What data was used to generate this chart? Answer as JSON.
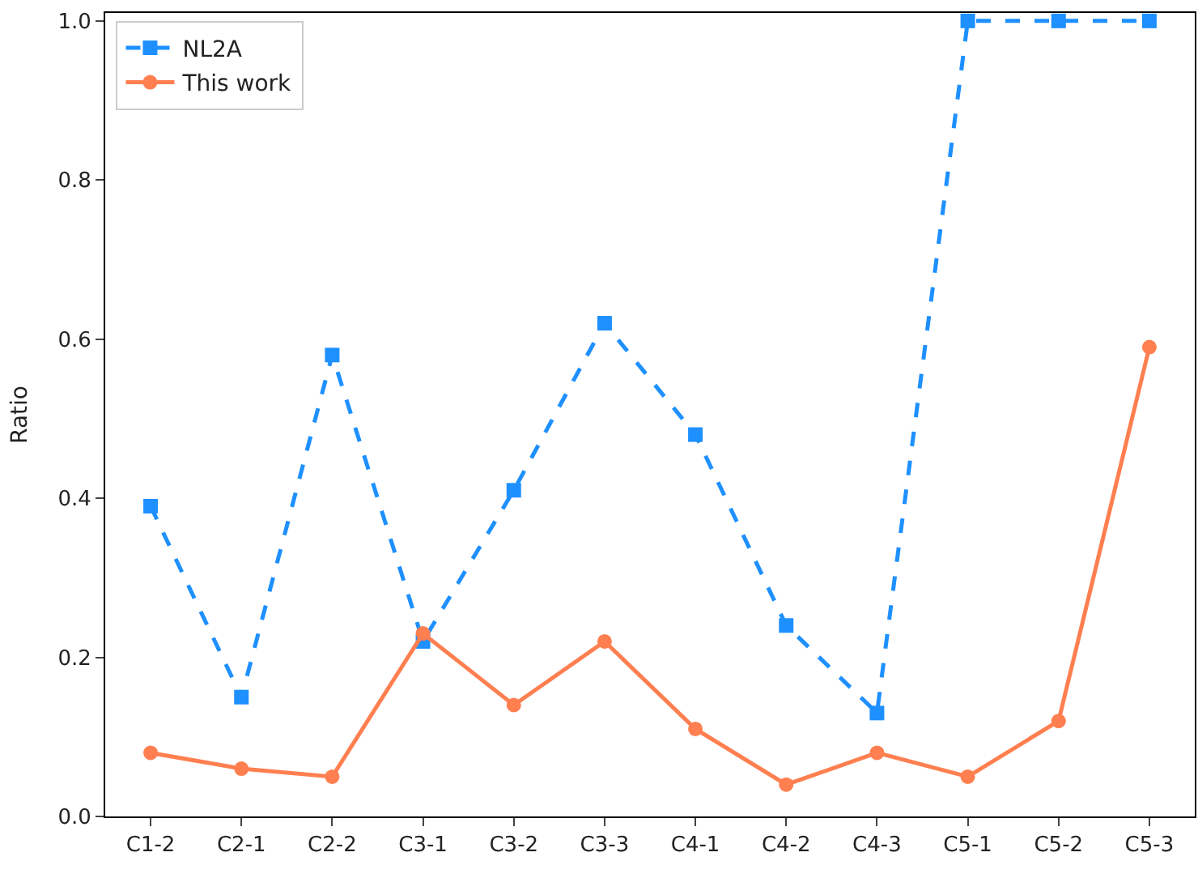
{
  "chart_data": {
    "type": "line",
    "ylabel": "Ratio",
    "categories": [
      "C1-2",
      "C2-1",
      "C2-2",
      "C3-1",
      "C3-2",
      "C3-3",
      "C4-1",
      "C4-2",
      "C4-3",
      "C5-1",
      "C5-2",
      "C5-3"
    ],
    "series": [
      {
        "name": "NL2A",
        "color": "#1e90ff",
        "marker": "square",
        "line_style": "dashed",
        "values": [
          0.39,
          0.15,
          0.58,
          0.22,
          0.41,
          0.62,
          0.48,
          0.24,
          0.13,
          1.0,
          1.0,
          1.0
        ]
      },
      {
        "name": "This work",
        "color": "#ff7f50",
        "marker": "circle",
        "line_style": "solid",
        "values": [
          0.08,
          0.06,
          0.05,
          0.23,
          0.14,
          0.22,
          0.11,
          0.04,
          0.08,
          0.05,
          0.12,
          0.59
        ]
      }
    ],
    "ylim": [
      0,
      1.01
    ],
    "yticks": [
      {
        "value": 0,
        "label": "0.0"
      },
      0.2,
      0.4,
      0.6,
      0.8,
      {
        "value": 1,
        "label": "1.0"
      }
    ],
    "legend": "top left"
  }
}
